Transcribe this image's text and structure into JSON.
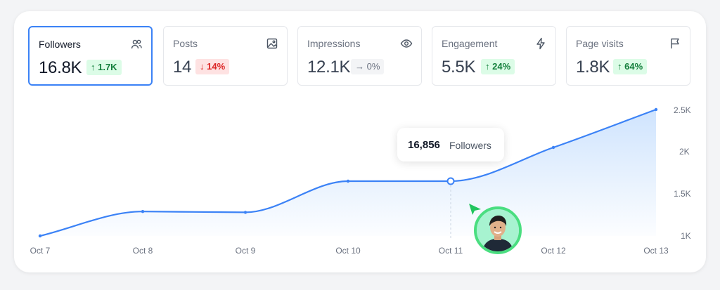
{
  "stats": [
    {
      "label": "Followers",
      "value": "16.8K",
      "change": "↑ 1.7K",
      "trend": "up",
      "icon": "users-icon"
    },
    {
      "label": "Posts",
      "value": "14",
      "change": "↓ 14%",
      "trend": "down",
      "icon": "image-icon"
    },
    {
      "label": "Impressions",
      "value": "12.1K",
      "change": "→ 0%",
      "trend": "flat",
      "icon": "eye-icon"
    },
    {
      "label": "Engagement",
      "value": "5.5K",
      "change": "↑ 24%",
      "trend": "up",
      "icon": "lightning-icon"
    },
    {
      "label": "Page visits",
      "value": "1.8K",
      "change": "↑ 64%",
      "trend": "up",
      "icon": "flag-icon"
    }
  ],
  "tooltip": {
    "value": "16,856",
    "label": "Followers"
  },
  "colors": {
    "accent": "#3b82f6",
    "up": "#15803d",
    "down": "#dc2626",
    "avatar_ring": "#4ade80"
  },
  "chart_data": {
    "type": "area",
    "title": "",
    "xlabel": "",
    "ylabel": "",
    "x_ticks": [
      "Oct 7",
      "Oct 8",
      "Oct 9",
      "Oct 10",
      "Oct 11",
      "Oct 12",
      "Oct 13"
    ],
    "y_ticks": [
      "1K",
      "1.5K",
      "2K",
      "2.5K"
    ],
    "ylim": [
      1000,
      2500
    ],
    "grid": false,
    "series": [
      {
        "points": [
          {
            "x": "Oct 7",
            "y": 1000
          },
          {
            "x": "Oct 8",
            "y": 1290
          },
          {
            "x": "Oct 9",
            "y": 1280
          },
          {
            "x": "Oct 10",
            "y": 1650
          },
          {
            "x": "Oct 11",
            "y": 1650
          },
          {
            "x": "Oct 12",
            "y": 2050
          },
          {
            "x": "Oct 13",
            "y": 2500
          }
        ]
      }
    ],
    "highlight": {
      "x": "Oct 11"
    }
  }
}
